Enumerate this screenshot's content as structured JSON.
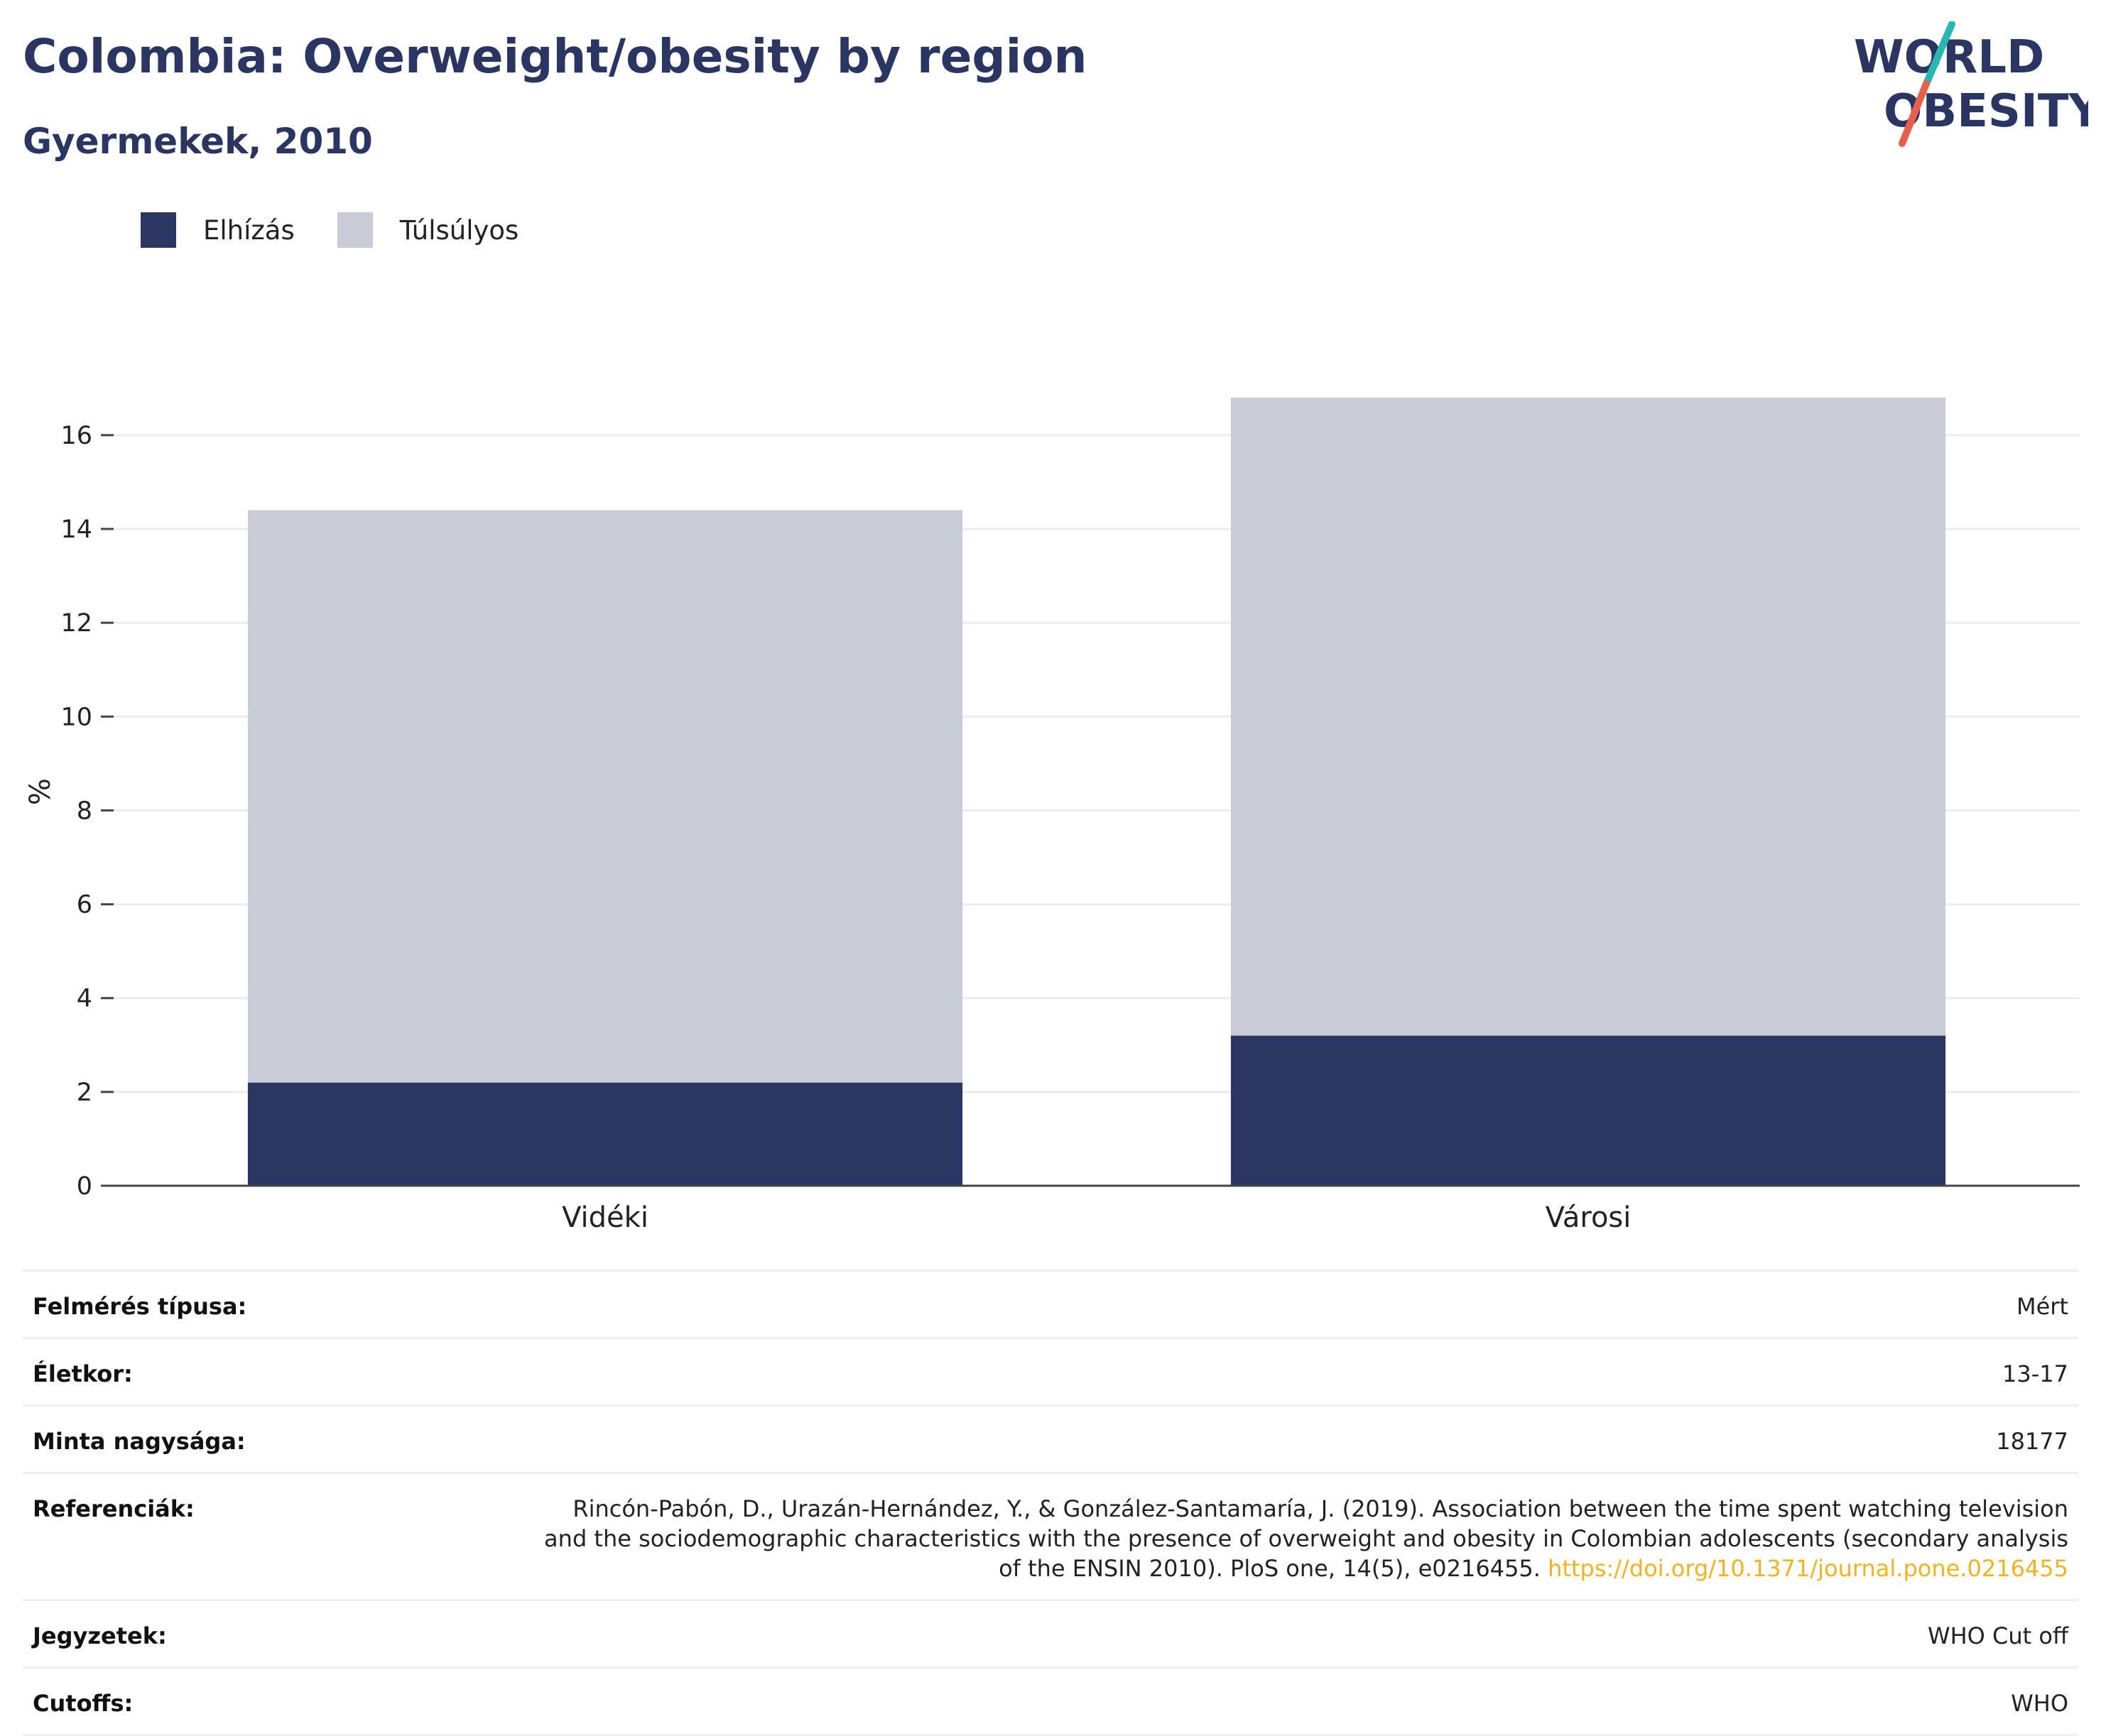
{
  "header": {
    "title": "Colombia: Overweight/obesity by region",
    "subtitle": "Gyermekek, 2010"
  },
  "logo": {
    "line1": "WORLD",
    "line2": "OBESITY",
    "colors": {
      "text": "#2a3561",
      "slash_top": "#2ab5b0",
      "slash_bottom": "#e8604c"
    }
  },
  "chart_data": {
    "type": "bar",
    "stacked": true,
    "categories": [
      "Vidéki",
      "Városi"
    ],
    "series": [
      {
        "name": "Elhízás",
        "color": "#2a3561",
        "values": [
          2.2,
          3.2
        ]
      },
      {
        "name": "Túlsúlyos",
        "color": "#c9ccd7",
        "values": [
          12.2,
          13.6
        ]
      }
    ],
    "ylabel": "%",
    "ylim": [
      0,
      16.8
    ],
    "yticks": [
      0,
      2,
      4,
      6,
      8,
      10,
      12,
      14,
      16
    ],
    "grid": true,
    "legend_position": "top-left"
  },
  "info": {
    "rows": [
      {
        "label": "Felmérés típusa:",
        "value": "Mért"
      },
      {
        "label": "Életkor:",
        "value": "13-17"
      },
      {
        "label": "Minta nagysága:",
        "value": "18177"
      },
      {
        "label": "Referenciák:",
        "value": "Rincón-Pabón, D., Urazán-Hernández, Y., & González-Santamaría, J. (2019). Association between the time spent watching television and the sociodemographic characteristics with the presence of overweight and obesity in Colombian adolescents (secondary analysis of the ENSIN 2010). PloS one, 14(5), e0216455. ",
        "link": "https://doi.org/10.1371/journal.pone.0216455"
      },
      {
        "label": "Jegyzetek:",
        "value": "WHO Cut off"
      },
      {
        "label": "Cutoffs:",
        "value": "WHO"
      }
    ]
  }
}
